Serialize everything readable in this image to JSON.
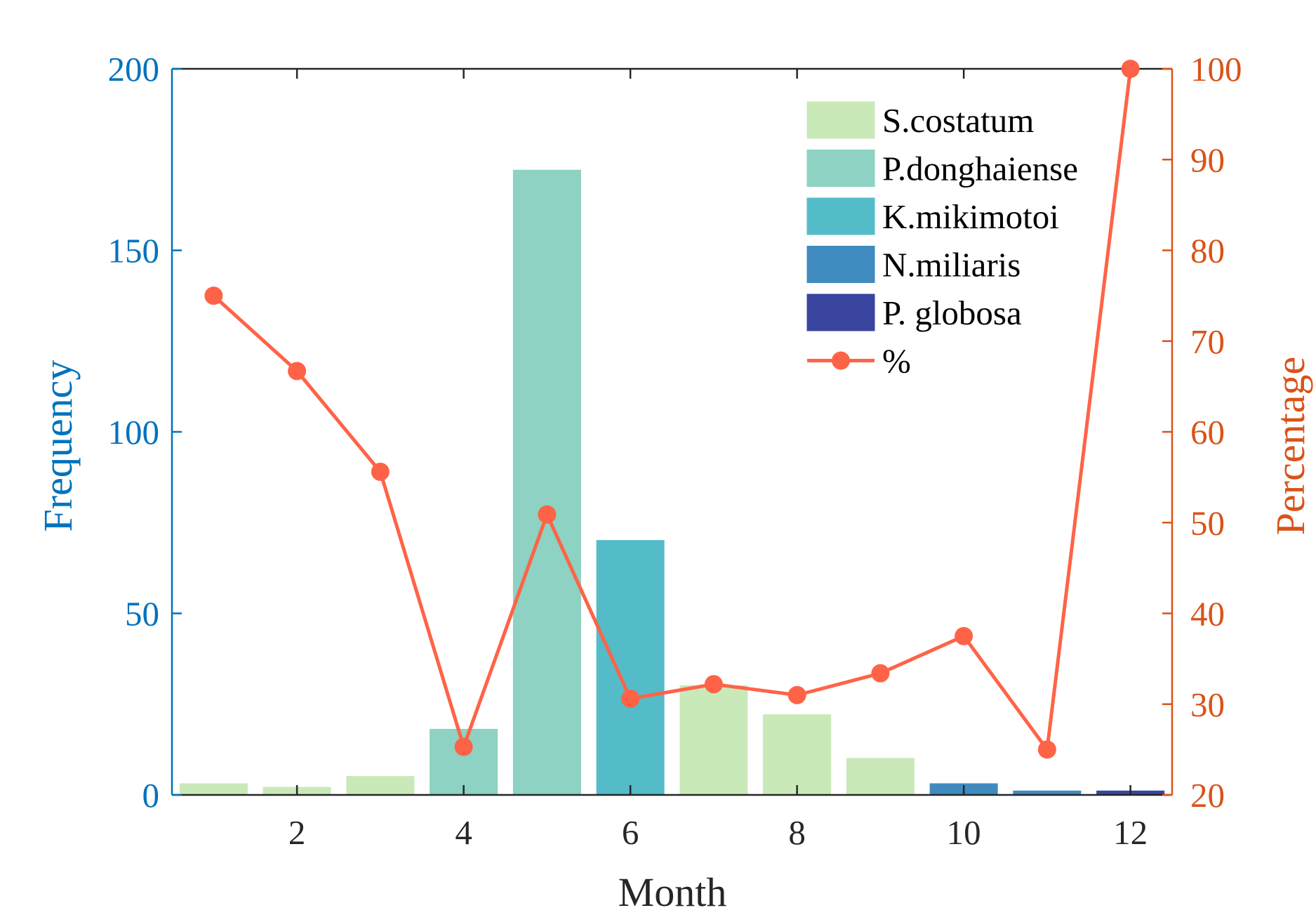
{
  "chart_data": {
    "type": "bar",
    "xlabel": "Month",
    "ylabel_left": "Frequency",
    "ylabel_right": "Percentage",
    "xlim": [
      0.5,
      12.5
    ],
    "xticks": [
      "2",
      "4",
      "6",
      "8",
      "10",
      "12"
    ],
    "ylim_left": [
      0,
      200
    ],
    "yticks_left": [
      "0",
      "50",
      "100",
      "150",
      "200"
    ],
    "ylim_right": [
      20,
      100
    ],
    "yticks_right": [
      "20",
      "30",
      "40",
      "50",
      "60",
      "70",
      "80",
      "90",
      "100"
    ],
    "bars": [
      {
        "month": 1,
        "value": 3,
        "species": "S.costatum"
      },
      {
        "month": 2,
        "value": 2,
        "species": "S.costatum"
      },
      {
        "month": 3,
        "value": 5,
        "species": "S.costatum"
      },
      {
        "month": 4,
        "value": 18,
        "species": "P.donghaiense"
      },
      {
        "month": 5,
        "value": 172,
        "species": "P.donghaiense"
      },
      {
        "month": 6,
        "value": 70,
        "species": "K.mikimotoi"
      },
      {
        "month": 7,
        "value": 30,
        "species": "S.costatum"
      },
      {
        "month": 8,
        "value": 22,
        "species": "S.costatum"
      },
      {
        "month": 9,
        "value": 10,
        "species": "S.costatum"
      },
      {
        "month": 10,
        "value": 3,
        "species": "N.miliaris"
      },
      {
        "month": 11,
        "value": 1,
        "species": "N.miliaris"
      },
      {
        "month": 12,
        "value": 1,
        "species": "P. globosa"
      }
    ],
    "line": {
      "name": "%",
      "color": "#ff6347",
      "x": [
        1,
        2,
        3,
        4,
        5,
        6,
        7,
        8,
        9,
        10,
        11,
        12
      ],
      "values": [
        75,
        66.7,
        55.6,
        25.3,
        50.9,
        30.6,
        32.2,
        31,
        33.4,
        37.5,
        25,
        100
      ]
    },
    "legend": [
      {
        "label": "S.costatum",
        "color": "#c9e9b9"
      },
      {
        "label": "P.donghaiense",
        "color": "#8dd2c2"
      },
      {
        "label": "K.mikimotoi",
        "color": "#54bbc9"
      },
      {
        "label": "N.miliaris",
        "color": "#3f8bc0"
      },
      {
        "label": "P. globosa",
        "color": "#3a45a0"
      }
    ],
    "legend_position": "top-right",
    "colors": {
      "left_axis": "#0072bd",
      "right_axis": "#d95319",
      "bottom_axis": "#262626"
    },
    "grid": false
  }
}
